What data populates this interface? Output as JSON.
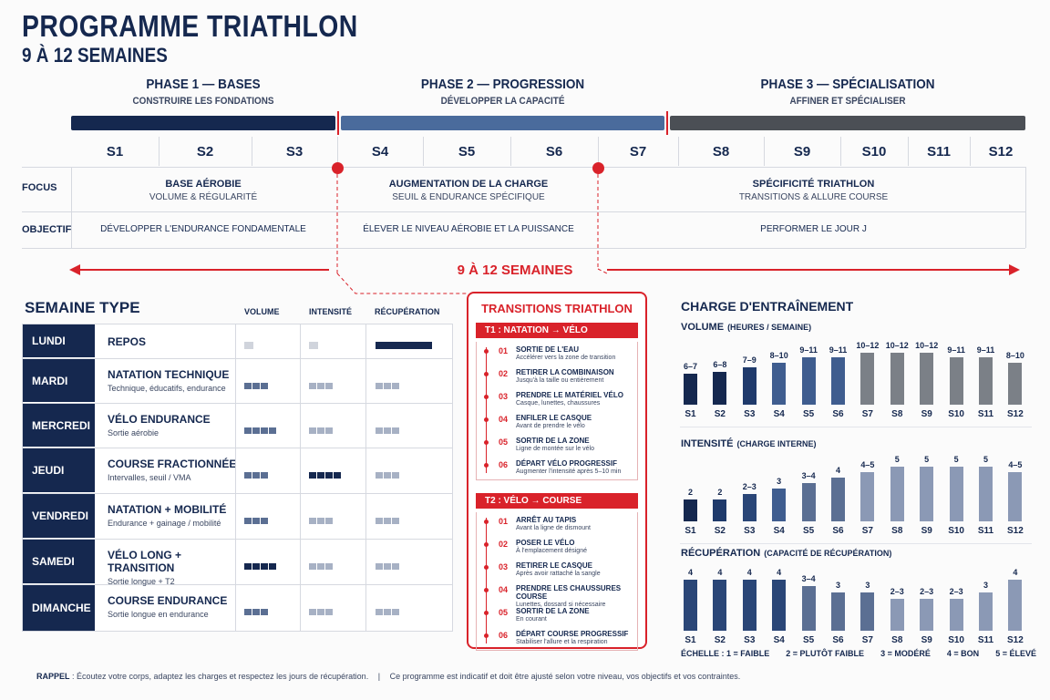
{
  "header": {
    "title": "PROGRAMME TRIATHLON",
    "subtitle": "9 À 12 SEMAINES"
  },
  "phases": [
    {
      "title": "PHASE 1 — BASES",
      "subtitle": "CONSTRUIRE LES FONDATIONS",
      "color": "#15284f"
    },
    {
      "title": "PHASE 2 — PROGRESSION",
      "subtitle": "DÉVELOPPER LA CAPACITÉ",
      "color": "#4a6b9c"
    },
    {
      "title": "PHASE 3 — SPÉCIALISATION",
      "subtitle": "AFFINER ET SPÉCIALISER",
      "color": "#4b4f55"
    }
  ],
  "weeks": [
    "S1",
    "S2",
    "S3",
    "S4",
    "S5",
    "S6",
    "S7",
    "S8",
    "S9",
    "S10",
    "S11",
    "S12"
  ],
  "rows": {
    "focus_label": "FOCUS",
    "objectif_label": "OBJECTIF",
    "focus": [
      {
        "main": "BASE AÉROBIE",
        "sub": "VOLUME & RÉGULARITÉ"
      },
      {
        "main": "AUGMENTATION DE LA CHARGE",
        "sub": "SEUIL & ENDURANCE SPÉCIFIQUE"
      },
      {
        "main": "SPÉCIFICITÉ TRIATHLON",
        "sub": "TRANSITIONS & ALLURE COURSE"
      }
    ],
    "objectif": [
      "DÉVELOPPER L'ENDURANCE FONDAMENTALE",
      "ÉLEVER LE NIVEAU AÉROBIE ET LA PUISSANCE",
      "PERFORMER LE JOUR J"
    ]
  },
  "duration_label": "9 À 12 SEMAINES",
  "semaine_type": {
    "title": "SEMAINE TYPE",
    "columns": [
      "VOLUME",
      "INTENSITÉ",
      "RÉCUPÉRATION"
    ],
    "days": [
      {
        "day": "LUNDI",
        "main": "REPOS",
        "sub": "",
        "volume": 1,
        "intensite": 1,
        "recup": 5
      },
      {
        "day": "MARDI",
        "main": "NATATION TECHNIQUE",
        "sub": "Technique, éducatifs, endurance",
        "volume": 3,
        "intensite": 3,
        "recup": 3
      },
      {
        "day": "MERCREDI",
        "main": "VÉLO ENDURANCE",
        "sub": "Sortie aérobie",
        "volume": 4,
        "intensite": 3,
        "recup": 3
      },
      {
        "day": "JEUDI",
        "main": "COURSE FRACTIONNÉE",
        "sub": "Intervalles, seuil / VMA",
        "volume": 3,
        "intensite": 4,
        "recup": 3
      },
      {
        "day": "VENDREDI",
        "main": "NATATION + MOBILITÉ",
        "sub": "Endurance + gainage / mobilité",
        "volume": 3,
        "intensite": 3,
        "recup": 3
      },
      {
        "day": "SAMEDI",
        "main": "VÉLO LONG + TRANSITION",
        "sub": "Sortie longue + T2",
        "volume": 4,
        "intensite": 3,
        "recup": 3
      },
      {
        "day": "DIMANCHE",
        "main": "COURSE ENDURANCE",
        "sub": "Sortie longue en endurance",
        "volume": 3,
        "intensite": 3,
        "recup": 3
      }
    ]
  },
  "transitions": {
    "title": "TRANSITIONS TRIATHLON",
    "t1": {
      "label": "T1 : NATATION → VÉLO",
      "steps": [
        {
          "n": "01",
          "main": "SORTIE DE L'EAU",
          "sub": "Accélérer vers la zone de transition"
        },
        {
          "n": "02",
          "main": "RETIRER LA COMBINAISON",
          "sub": "Jusqu'à la taille ou entièrement"
        },
        {
          "n": "03",
          "main": "PRENDRE LE MATÉRIEL VÉLO",
          "sub": "Casque, lunettes, chaussures"
        },
        {
          "n": "04",
          "main": "ENFILER LE CASQUE",
          "sub": "Avant de prendre le vélo"
        },
        {
          "n": "05",
          "main": "SORTIR DE LA ZONE",
          "sub": "Ligne de montée sur le vélo"
        },
        {
          "n": "06",
          "main": "DÉPART VÉLO PROGRESSIF",
          "sub": "Augmenter l'intensité après 5–10 min"
        }
      ]
    },
    "t2": {
      "label": "T2 : VÉLO → COURSE",
      "steps": [
        {
          "n": "01",
          "main": "ARRÊT AU TAPIS",
          "sub": "Avant la ligne de dismount"
        },
        {
          "n": "02",
          "main": "POSER LE VÉLO",
          "sub": "À l'emplacement désigné"
        },
        {
          "n": "03",
          "main": "RETIRER LE CASQUE",
          "sub": "Après avoir rattaché la sangle"
        },
        {
          "n": "04",
          "main": "PRENDRE LES CHAUSSURES COURSE",
          "sub": "Lunettes, dossard si nécessaire"
        },
        {
          "n": "05",
          "main": "SORTIR DE LA ZONE",
          "sub": "En courant"
        },
        {
          "n": "06",
          "main": "DÉPART COURSE PROGRESSIF",
          "sub": "Stabiliser l'allure et la respiration"
        }
      ]
    }
  },
  "charge": {
    "title": "CHARGE D'ENTRAÎNEMENT",
    "colors": {
      "phase1": "#15284f",
      "phase2": "#3f5d8f",
      "phase3": "#7b8087",
      "light": "#8b99b5"
    }
  },
  "chart_data": [
    {
      "type": "bar",
      "title": "VOLUME",
      "subtitle": "(HEURES / SEMAINE)",
      "categories": [
        "S1",
        "S2",
        "S3",
        "S4",
        "S5",
        "S6",
        "S7",
        "S8",
        "S9",
        "S10",
        "S11",
        "S12"
      ],
      "labels": [
        "6–7",
        "6–8",
        "7–9",
        "8–10",
        "9–11",
        "9–11",
        "10–12",
        "10–12",
        "10–12",
        "9–11",
        "9–11",
        "8–10"
      ],
      "values": [
        6.5,
        7,
        8,
        9,
        10,
        10,
        11,
        11,
        11,
        10,
        10,
        9
      ],
      "ylim": [
        0,
        12
      ]
    },
    {
      "type": "bar",
      "title": "INTENSITÉ",
      "subtitle": "(CHARGE INTERNE)",
      "categories": [
        "S1",
        "S2",
        "S3",
        "S4",
        "S5",
        "S6",
        "S7",
        "S8",
        "S9",
        "S10",
        "S11",
        "S12"
      ],
      "labels": [
        "2",
        "2",
        "2–3",
        "3",
        "3–4",
        "4",
        "4–5",
        "5",
        "5",
        "5",
        "5",
        "4–5"
      ],
      "values": [
        2,
        2,
        2.5,
        3,
        3.5,
        4,
        4.5,
        5,
        5,
        5,
        5,
        4.5
      ],
      "ylim": [
        0,
        5
      ]
    },
    {
      "type": "bar",
      "title": "RÉCUPÉRATION",
      "subtitle": "(CAPACITÉ DE RÉCUPÉRATION)",
      "categories": [
        "S1",
        "S2",
        "S3",
        "S4",
        "S5",
        "S6",
        "S7",
        "S8",
        "S9",
        "S10",
        "S11",
        "S12"
      ],
      "labels": [
        "4",
        "4",
        "4",
        "4",
        "3–4",
        "3",
        "3",
        "2–3",
        "2–3",
        "2–3",
        "3",
        "4"
      ],
      "values": [
        4,
        4,
        4,
        4,
        3.5,
        3,
        3,
        2.5,
        2.5,
        2.5,
        3,
        4
      ],
      "ylim": [
        0,
        4
      ]
    }
  ],
  "scale": [
    "ÉCHELLE : 1 = FAIBLE",
    "2 = PLUTÔT FAIBLE",
    "3 = MODÉRÉ",
    "4 = BON",
    "5 = ÉLEVÉ"
  ],
  "footer": {
    "label": "RAPPEL",
    "text1": " : Écoutez votre corps, adaptez les charges et respectez les jours de récupération.",
    "sep": "|",
    "text2": "Ce programme est indicatif et doit être ajusté selon votre niveau, vos objectifs et vos contraintes."
  }
}
